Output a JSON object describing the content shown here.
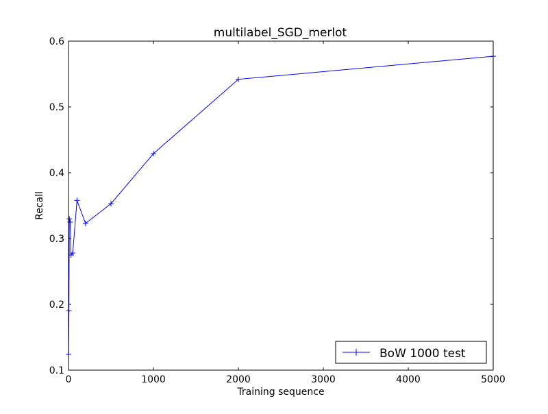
{
  "chart_data": {
    "type": "line",
    "title": "multilabel_SGD_merlot",
    "xlabel": "Training sequence",
    "ylabel": "Recall",
    "xlim": [
      0,
      5000
    ],
    "ylim": [
      0.1,
      0.6
    ],
    "xticks": [
      0,
      1000,
      2000,
      3000,
      4000,
      5000
    ],
    "xtick_labels": [
      "0",
      "1000",
      "2000",
      "3000",
      "4000",
      "5000"
    ],
    "yticks": [
      0.1,
      0.2,
      0.3,
      0.4,
      0.5,
      0.6
    ],
    "ytick_labels": [
      "0.1",
      "0.2",
      "0.3",
      "0.4",
      "0.5",
      "0.6"
    ],
    "grid": false,
    "legend_position": "bottom-right",
    "series": [
      {
        "name": "BoW 1000 test",
        "color": "#0000ff",
        "marker": "plus",
        "x": [
          1,
          5,
          10,
          20,
          30,
          50,
          100,
          200,
          500,
          1000,
          2000,
          5000
        ],
        "y": [
          0.124,
          0.19,
          0.33,
          0.325,
          0.275,
          0.278,
          0.358,
          0.323,
          0.353,
          0.429,
          0.542,
          0.577
        ]
      }
    ]
  }
}
